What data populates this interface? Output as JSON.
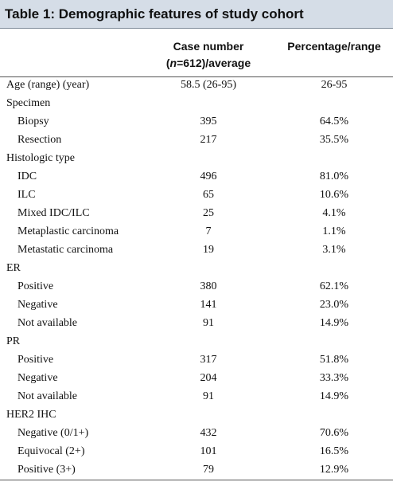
{
  "title": "Table 1: Demographic features of study cohort",
  "header": {
    "case_number": {
      "line1": "Case number",
      "open": "(",
      "n": "n",
      "rest": "=612)/average"
    },
    "percentage": "Percentage/range"
  },
  "table": {
    "rows": [
      [
        "Age (range) (year)",
        "58.5 (26-95)",
        "26-95"
      ]
    ],
    "groups": [
      {
        "name": "Specimen",
        "rows": [
          [
            "Biopsy",
            "395",
            "64.5%"
          ],
          [
            "Resection",
            "217",
            "35.5%"
          ]
        ]
      },
      {
        "name": "Histologic type",
        "rows": [
          [
            "IDC",
            "496",
            "81.0%"
          ],
          [
            "ILC",
            "65",
            "10.6%"
          ],
          [
            "Mixed IDC/ILC",
            "25",
            "4.1%"
          ],
          [
            "Metaplastic carcinoma",
            "7",
            "1.1%"
          ],
          [
            "Metastatic carcinoma",
            "19",
            "3.1%"
          ]
        ]
      },
      {
        "name": "ER",
        "rows": [
          [
            "Positive",
            "380",
            "62.1%"
          ],
          [
            "Negative",
            "141",
            "23.0%"
          ],
          [
            "Not available",
            "91",
            "14.9%"
          ]
        ]
      },
      {
        "name": "PR",
        "rows": [
          [
            "Positive",
            "317",
            "51.8%"
          ],
          [
            "Negative",
            "204",
            "33.3%"
          ],
          [
            "Not available",
            "91",
            "14.9%"
          ]
        ]
      },
      {
        "name": "HER2 IHC",
        "rows": [
          [
            "Negative (0/1+)",
            "432",
            "70.6%"
          ],
          [
            "Equivocal (2+)",
            "101",
            "16.5%"
          ],
          [
            "Positive (3+)",
            "79",
            "12.9%"
          ]
        ]
      }
    ]
  }
}
